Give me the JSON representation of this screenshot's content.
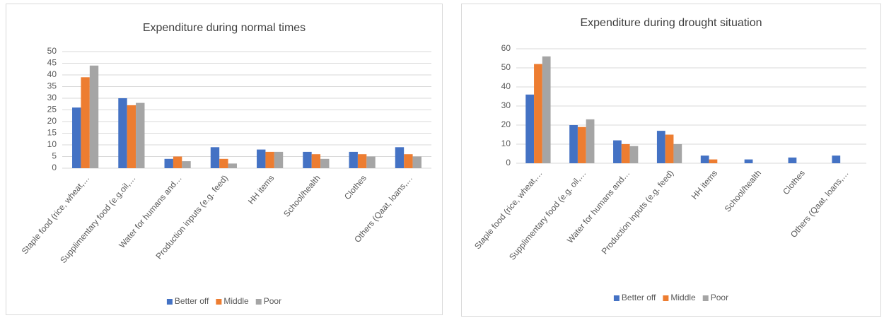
{
  "chart_data": [
    {
      "type": "bar",
      "title": "Expenditure during normal times",
      "categories": [
        "Staple food (rice, wheat,…",
        "Supplimentary food (e.g.oil,…",
        "Water for humans and…",
        "Production inputs (e.g. feed)",
        "HH items",
        "School/health",
        "Clothes",
        "Others (Qaat, loans,…"
      ],
      "series": [
        {
          "name": "Better off",
          "color": "#4472c4",
          "values": [
            26,
            30,
            4,
            9,
            8,
            7,
            7,
            9
          ]
        },
        {
          "name": "Middle",
          "color": "#ed7d31",
          "values": [
            39,
            27,
            5,
            4,
            7,
            6,
            6,
            6
          ]
        },
        {
          "name": "Poor",
          "color": "#a5a5a5",
          "values": [
            44,
            28,
            3,
            2,
            7,
            4,
            5,
            5
          ]
        }
      ],
      "ylim": [
        0,
        50
      ],
      "yticks": [
        0,
        5,
        10,
        15,
        20,
        25,
        30,
        35,
        40,
        45,
        50
      ],
      "grid": true,
      "legend": "bottom"
    },
    {
      "type": "bar",
      "title": "Expenditure during drought situation",
      "categories": [
        "Staple food (rice, wheat,…",
        "Supplimentary food (e.g. oil,…",
        "Water for humans and…",
        "Production inputs (e.g. feed)",
        "HH items",
        "School/health",
        "Clothes",
        "Others (Qaat, loans,…"
      ],
      "series": [
        {
          "name": "Better off",
          "color": "#4472c4",
          "values": [
            36,
            20,
            12,
            17,
            4,
            2,
            3,
            4
          ]
        },
        {
          "name": "Middle",
          "color": "#ed7d31",
          "values": [
            52,
            19,
            10,
            15,
            2,
            0,
            0,
            0
          ]
        },
        {
          "name": "Poor",
          "color": "#a5a5a5",
          "values": [
            56,
            23,
            9,
            10,
            0,
            0,
            0,
            0
          ]
        }
      ],
      "ylim": [
        0,
        60
      ],
      "yticks": [
        0,
        10,
        20,
        30,
        40,
        50,
        60
      ],
      "grid": true,
      "legend": "bottom"
    }
  ]
}
